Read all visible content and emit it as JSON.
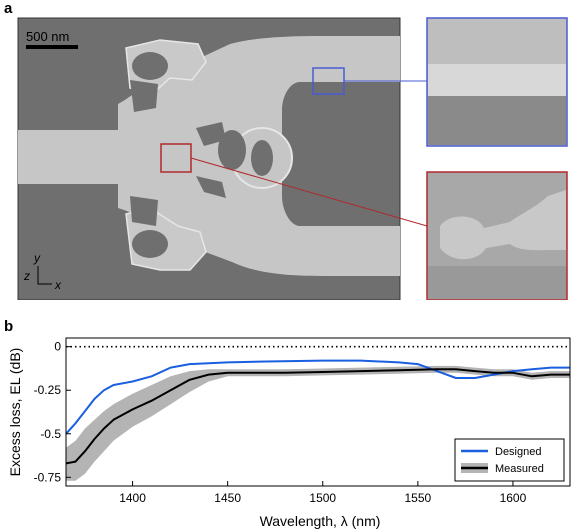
{
  "panel_a": {
    "label": "a",
    "scale_bar": "500 nm",
    "axis_y": "y",
    "axis_z": "z",
    "axis_x": "x"
  },
  "panel_b": {
    "label": "b"
  },
  "colors": {
    "designed": "#1a5fe0",
    "measured": "#000000",
    "band": "#b4b4b4",
    "zoom_blue": "#4a5bd4",
    "zoom_red": "#b0282c",
    "sem_bg": "#6f6f6f",
    "sem_device": "#c6c6c6"
  },
  "chart_data": {
    "type": "line",
    "xlabel": "Wavelength, λ (nm)",
    "ylabel": "Excess loss, EL (dB)",
    "xlim": [
      1365,
      1630
    ],
    "ylim": [
      -0.8,
      0.05
    ],
    "xticks": [
      1400,
      1450,
      1500,
      1550,
      1600
    ],
    "yticks": [
      0,
      -0.25,
      -0.5,
      -0.75
    ],
    "ytick_labels": [
      "0",
      "-0.25",
      "-0.5",
      "-0.75"
    ],
    "reference_line": 0,
    "legend_position": "bottom-right",
    "series": [
      {
        "name": "Designed",
        "x": [
          1365,
          1370,
          1375,
          1380,
          1385,
          1390,
          1400,
          1410,
          1420,
          1430,
          1440,
          1450,
          1470,
          1500,
          1520,
          1540,
          1550,
          1560,
          1570,
          1580,
          1590,
          1600,
          1610,
          1620,
          1630
        ],
        "y": [
          -0.5,
          -0.44,
          -0.37,
          -0.3,
          -0.25,
          -0.22,
          -0.2,
          -0.17,
          -0.12,
          -0.1,
          -0.095,
          -0.09,
          -0.085,
          -0.08,
          -0.08,
          -0.09,
          -0.1,
          -0.14,
          -0.18,
          -0.18,
          -0.16,
          -0.14,
          -0.13,
          -0.12,
          -0.12
        ]
      },
      {
        "name": "Measured",
        "x": [
          1365,
          1370,
          1375,
          1380,
          1385,
          1390,
          1400,
          1410,
          1420,
          1430,
          1440,
          1450,
          1460,
          1480,
          1500,
          1520,
          1540,
          1560,
          1570,
          1580,
          1590,
          1600,
          1610,
          1620,
          1630
        ],
        "y": [
          -0.67,
          -0.66,
          -0.6,
          -0.53,
          -0.47,
          -0.42,
          -0.36,
          -0.31,
          -0.25,
          -0.19,
          -0.16,
          -0.15,
          -0.15,
          -0.15,
          -0.145,
          -0.14,
          -0.135,
          -0.13,
          -0.13,
          -0.14,
          -0.15,
          -0.15,
          -0.17,
          -0.16,
          -0.16
        ],
        "band_upper": [
          -0.58,
          -0.54,
          -0.47,
          -0.42,
          -0.37,
          -0.33,
          -0.27,
          -0.22,
          -0.17,
          -0.14,
          -0.13,
          -0.13,
          -0.13,
          -0.13,
          -0.125,
          -0.12,
          -0.115,
          -0.11,
          -0.11,
          -0.12,
          -0.13,
          -0.13,
          -0.15,
          -0.14,
          -0.14
        ],
        "band_lower": [
          -0.77,
          -0.77,
          -0.73,
          -0.66,
          -0.6,
          -0.54,
          -0.46,
          -0.4,
          -0.33,
          -0.26,
          -0.2,
          -0.17,
          -0.17,
          -0.17,
          -0.165,
          -0.16,
          -0.155,
          -0.15,
          -0.15,
          -0.16,
          -0.17,
          -0.17,
          -0.19,
          -0.18,
          -0.18
        ]
      }
    ]
  }
}
